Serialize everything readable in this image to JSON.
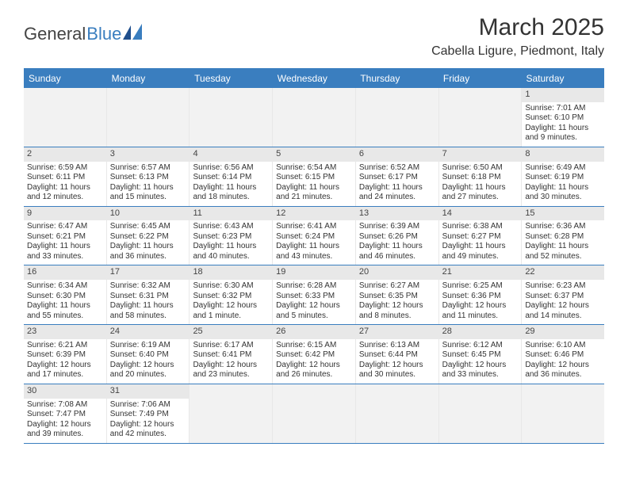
{
  "logo": {
    "text1": "General",
    "text2": "Blue"
  },
  "header": {
    "month": "March 2025",
    "location": "Cabella Ligure, Piedmont, Italy"
  },
  "weekdays": [
    "Sunday",
    "Monday",
    "Tuesday",
    "Wednesday",
    "Thursday",
    "Friday",
    "Saturday"
  ],
  "weeks": [
    [
      null,
      null,
      null,
      null,
      null,
      null,
      {
        "n": "1",
        "sunrise": "Sunrise: 7:01 AM",
        "sunset": "Sunset: 6:10 PM",
        "daylight1": "Daylight: 11 hours",
        "daylight2": "and 9 minutes."
      }
    ],
    [
      {
        "n": "2",
        "sunrise": "Sunrise: 6:59 AM",
        "sunset": "Sunset: 6:11 PM",
        "daylight1": "Daylight: 11 hours",
        "daylight2": "and 12 minutes."
      },
      {
        "n": "3",
        "sunrise": "Sunrise: 6:57 AM",
        "sunset": "Sunset: 6:13 PM",
        "daylight1": "Daylight: 11 hours",
        "daylight2": "and 15 minutes."
      },
      {
        "n": "4",
        "sunrise": "Sunrise: 6:56 AM",
        "sunset": "Sunset: 6:14 PM",
        "daylight1": "Daylight: 11 hours",
        "daylight2": "and 18 minutes."
      },
      {
        "n": "5",
        "sunrise": "Sunrise: 6:54 AM",
        "sunset": "Sunset: 6:15 PM",
        "daylight1": "Daylight: 11 hours",
        "daylight2": "and 21 minutes."
      },
      {
        "n": "6",
        "sunrise": "Sunrise: 6:52 AM",
        "sunset": "Sunset: 6:17 PM",
        "daylight1": "Daylight: 11 hours",
        "daylight2": "and 24 minutes."
      },
      {
        "n": "7",
        "sunrise": "Sunrise: 6:50 AM",
        "sunset": "Sunset: 6:18 PM",
        "daylight1": "Daylight: 11 hours",
        "daylight2": "and 27 minutes."
      },
      {
        "n": "8",
        "sunrise": "Sunrise: 6:49 AM",
        "sunset": "Sunset: 6:19 PM",
        "daylight1": "Daylight: 11 hours",
        "daylight2": "and 30 minutes."
      }
    ],
    [
      {
        "n": "9",
        "sunrise": "Sunrise: 6:47 AM",
        "sunset": "Sunset: 6:21 PM",
        "daylight1": "Daylight: 11 hours",
        "daylight2": "and 33 minutes."
      },
      {
        "n": "10",
        "sunrise": "Sunrise: 6:45 AM",
        "sunset": "Sunset: 6:22 PM",
        "daylight1": "Daylight: 11 hours",
        "daylight2": "and 36 minutes."
      },
      {
        "n": "11",
        "sunrise": "Sunrise: 6:43 AM",
        "sunset": "Sunset: 6:23 PM",
        "daylight1": "Daylight: 11 hours",
        "daylight2": "and 40 minutes."
      },
      {
        "n": "12",
        "sunrise": "Sunrise: 6:41 AM",
        "sunset": "Sunset: 6:24 PM",
        "daylight1": "Daylight: 11 hours",
        "daylight2": "and 43 minutes."
      },
      {
        "n": "13",
        "sunrise": "Sunrise: 6:39 AM",
        "sunset": "Sunset: 6:26 PM",
        "daylight1": "Daylight: 11 hours",
        "daylight2": "and 46 minutes."
      },
      {
        "n": "14",
        "sunrise": "Sunrise: 6:38 AM",
        "sunset": "Sunset: 6:27 PM",
        "daylight1": "Daylight: 11 hours",
        "daylight2": "and 49 minutes."
      },
      {
        "n": "15",
        "sunrise": "Sunrise: 6:36 AM",
        "sunset": "Sunset: 6:28 PM",
        "daylight1": "Daylight: 11 hours",
        "daylight2": "and 52 minutes."
      }
    ],
    [
      {
        "n": "16",
        "sunrise": "Sunrise: 6:34 AM",
        "sunset": "Sunset: 6:30 PM",
        "daylight1": "Daylight: 11 hours",
        "daylight2": "and 55 minutes."
      },
      {
        "n": "17",
        "sunrise": "Sunrise: 6:32 AM",
        "sunset": "Sunset: 6:31 PM",
        "daylight1": "Daylight: 11 hours",
        "daylight2": "and 58 minutes."
      },
      {
        "n": "18",
        "sunrise": "Sunrise: 6:30 AM",
        "sunset": "Sunset: 6:32 PM",
        "daylight1": "Daylight: 12 hours",
        "daylight2": "and 1 minute."
      },
      {
        "n": "19",
        "sunrise": "Sunrise: 6:28 AM",
        "sunset": "Sunset: 6:33 PM",
        "daylight1": "Daylight: 12 hours",
        "daylight2": "and 5 minutes."
      },
      {
        "n": "20",
        "sunrise": "Sunrise: 6:27 AM",
        "sunset": "Sunset: 6:35 PM",
        "daylight1": "Daylight: 12 hours",
        "daylight2": "and 8 minutes."
      },
      {
        "n": "21",
        "sunrise": "Sunrise: 6:25 AM",
        "sunset": "Sunset: 6:36 PM",
        "daylight1": "Daylight: 12 hours",
        "daylight2": "and 11 minutes."
      },
      {
        "n": "22",
        "sunrise": "Sunrise: 6:23 AM",
        "sunset": "Sunset: 6:37 PM",
        "daylight1": "Daylight: 12 hours",
        "daylight2": "and 14 minutes."
      }
    ],
    [
      {
        "n": "23",
        "sunrise": "Sunrise: 6:21 AM",
        "sunset": "Sunset: 6:39 PM",
        "daylight1": "Daylight: 12 hours",
        "daylight2": "and 17 minutes."
      },
      {
        "n": "24",
        "sunrise": "Sunrise: 6:19 AM",
        "sunset": "Sunset: 6:40 PM",
        "daylight1": "Daylight: 12 hours",
        "daylight2": "and 20 minutes."
      },
      {
        "n": "25",
        "sunrise": "Sunrise: 6:17 AM",
        "sunset": "Sunset: 6:41 PM",
        "daylight1": "Daylight: 12 hours",
        "daylight2": "and 23 minutes."
      },
      {
        "n": "26",
        "sunrise": "Sunrise: 6:15 AM",
        "sunset": "Sunset: 6:42 PM",
        "daylight1": "Daylight: 12 hours",
        "daylight2": "and 26 minutes."
      },
      {
        "n": "27",
        "sunrise": "Sunrise: 6:13 AM",
        "sunset": "Sunset: 6:44 PM",
        "daylight1": "Daylight: 12 hours",
        "daylight2": "and 30 minutes."
      },
      {
        "n": "28",
        "sunrise": "Sunrise: 6:12 AM",
        "sunset": "Sunset: 6:45 PM",
        "daylight1": "Daylight: 12 hours",
        "daylight2": "and 33 minutes."
      },
      {
        "n": "29",
        "sunrise": "Sunrise: 6:10 AM",
        "sunset": "Sunset: 6:46 PM",
        "daylight1": "Daylight: 12 hours",
        "daylight2": "and 36 minutes."
      }
    ],
    [
      {
        "n": "30",
        "sunrise": "Sunrise: 7:08 AM",
        "sunset": "Sunset: 7:47 PM",
        "daylight1": "Daylight: 12 hours",
        "daylight2": "and 39 minutes."
      },
      {
        "n": "31",
        "sunrise": "Sunrise: 7:06 AM",
        "sunset": "Sunset: 7:49 PM",
        "daylight1": "Daylight: 12 hours",
        "daylight2": "and 42 minutes."
      },
      null,
      null,
      null,
      null,
      null
    ]
  ],
  "colors": {
    "header_bg": "#3a7ebf",
    "header_text": "#ffffff",
    "border": "#3a7ebf",
    "daynum_bg": "#e8e8e8",
    "empty_bg": "#f2f2f2"
  }
}
